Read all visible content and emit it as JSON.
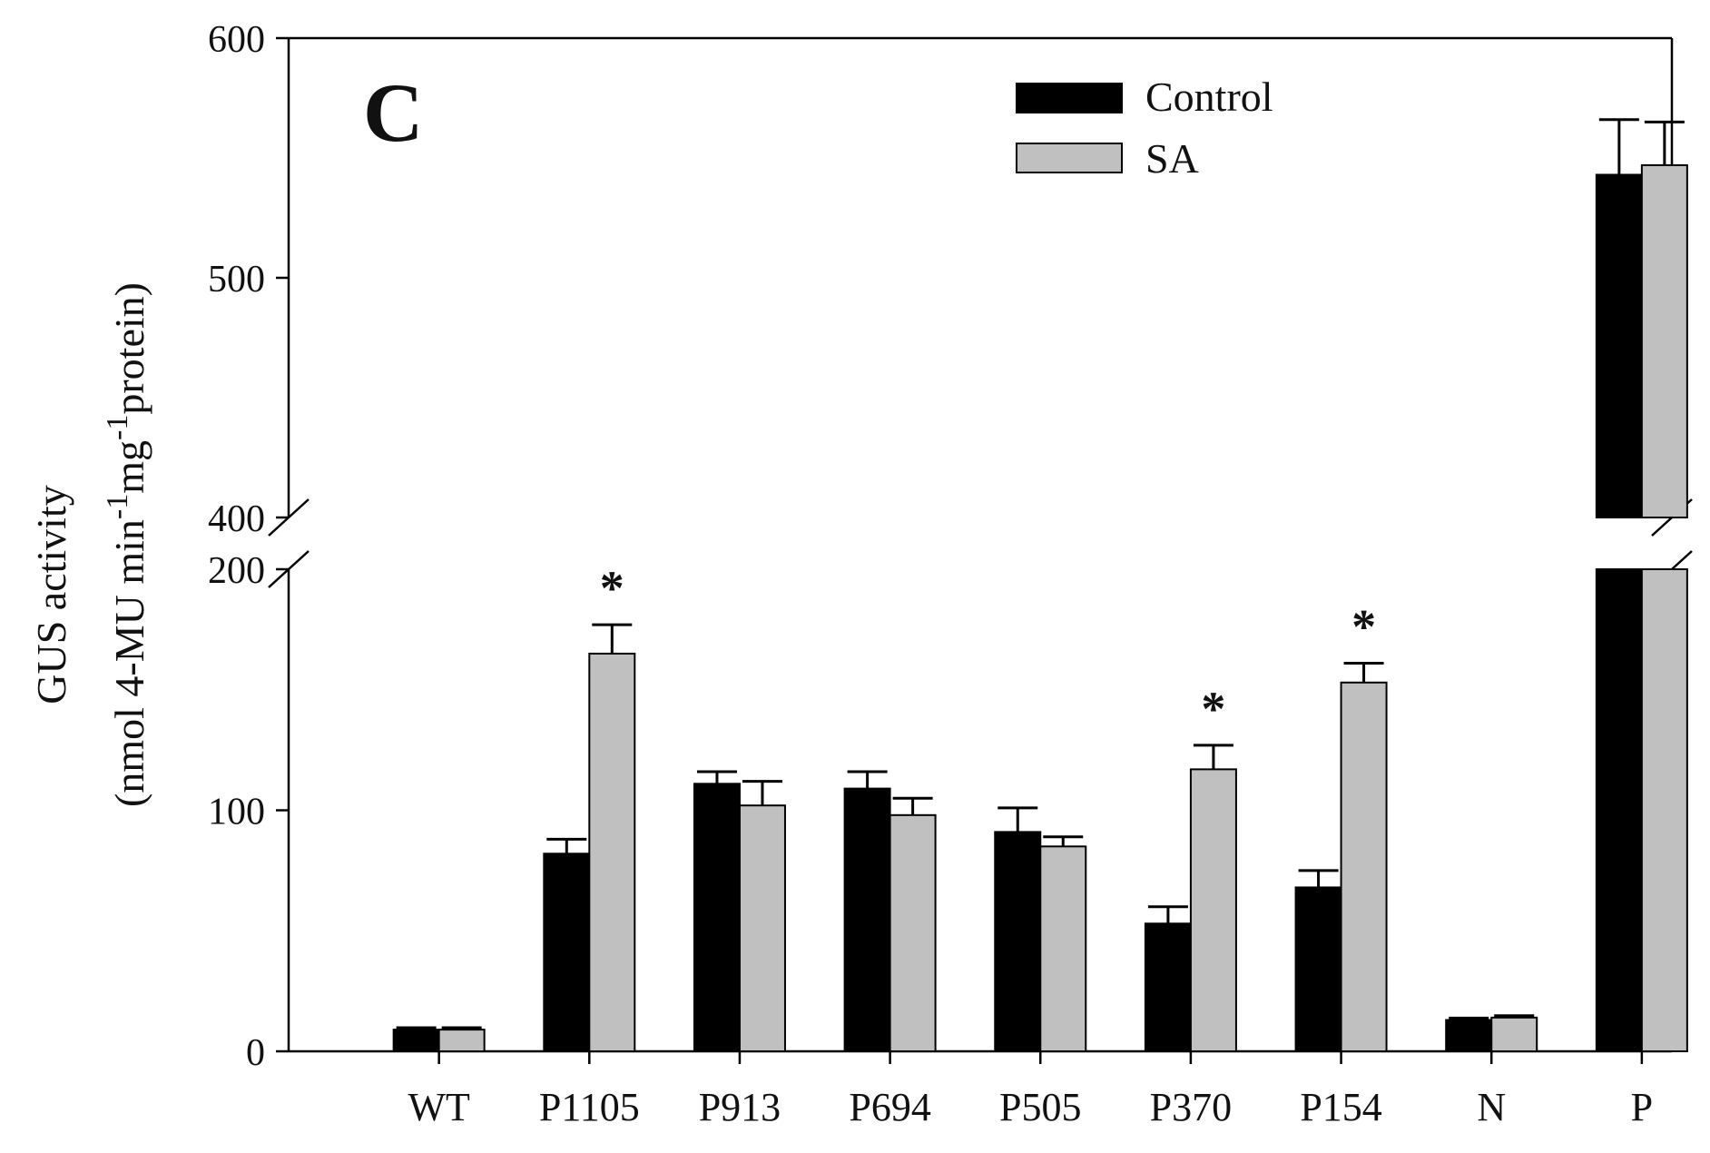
{
  "chart_data": {
    "type": "bar",
    "panel_label": "C",
    "ylabel_line1": "GUS activity",
    "ylabel_line2": {
      "part1": "(nmol 4-MU min",
      "sup1": "-1",
      "part2": "mg",
      "sup2": "-1",
      "part3": "protein)"
    },
    "xlabel": "",
    "categories": [
      "WT",
      "P1105",
      "P913",
      "P694",
      "P505",
      "P370",
      "P154",
      "N",
      "P"
    ],
    "series": [
      {
        "name": "Control",
        "color": "#000000",
        "values": [
          9,
          82,
          111,
          109,
          91,
          53,
          68,
          13,
          543
        ],
        "errors": [
          0.8,
          6,
          5,
          7,
          10,
          7,
          7,
          0.8,
          23
        ]
      },
      {
        "name": "SA",
        "color": "#c0c0c0",
        "values": [
          9,
          165,
          102,
          98,
          85,
          117,
          153,
          14,
          547
        ],
        "errors": [
          0.8,
          12,
          10,
          7,
          4,
          10,
          8,
          0.8,
          18
        ]
      }
    ],
    "significance": [
      {
        "category": "P1105",
        "series": "SA",
        "label": "*"
      },
      {
        "category": "P370",
        "series": "SA",
        "label": "*"
      },
      {
        "category": "P154",
        "series": "SA",
        "label": "*"
      }
    ],
    "y_axis": {
      "segments": [
        {
          "range": [
            0,
            200
          ],
          "ticks": [
            0,
            100,
            200
          ]
        },
        {
          "range": [
            400,
            600
          ],
          "ticks": [
            400,
            500,
            600
          ]
        }
      ],
      "break_between": [
        200,
        400
      ]
    },
    "legend": {
      "position": "top-center",
      "entries": [
        "Control",
        "SA"
      ]
    },
    "grid": false
  }
}
